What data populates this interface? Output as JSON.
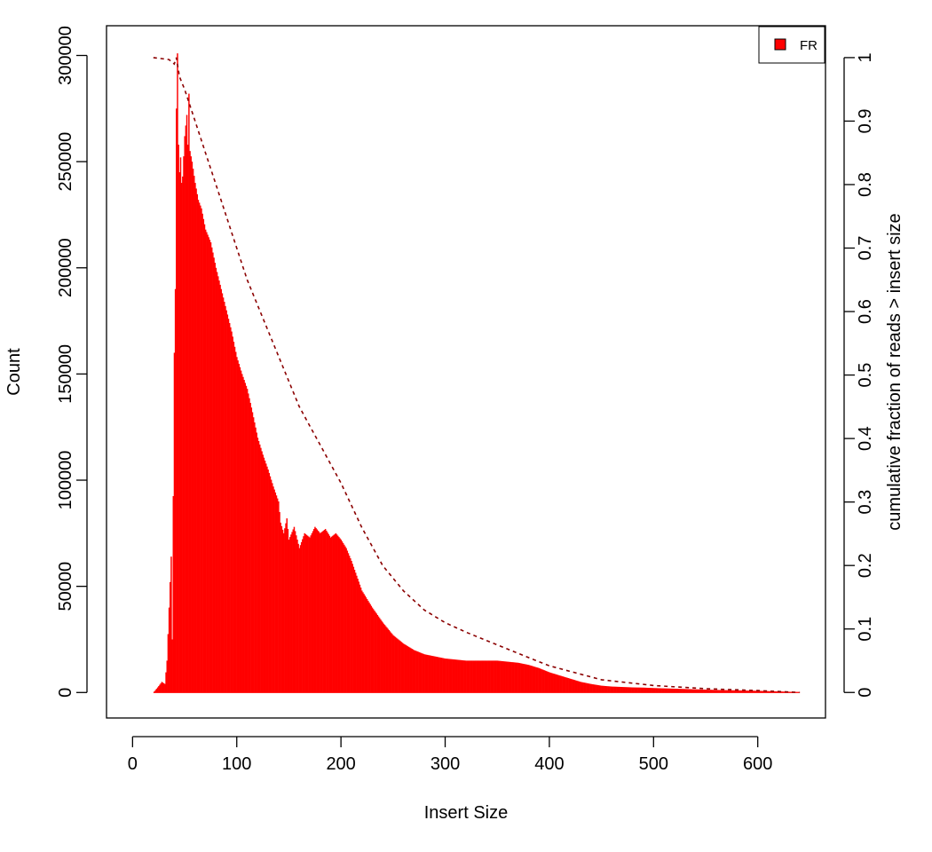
{
  "chart_data": {
    "type": "bar",
    "xlabel": "Insert Size",
    "ylabel": "Count",
    "y2label": "cumulative fraction of reads > insert size",
    "xlim": [
      -25,
      665
    ],
    "ylim": [
      -12000,
      314000
    ],
    "y2lim": [
      -0.0402,
      1.0502
    ],
    "x_ticks": [
      0,
      100,
      200,
      300,
      400,
      500,
      600
    ],
    "y_ticks": [
      0,
      50000,
      100000,
      150000,
      200000,
      250000,
      300000
    ],
    "y2_ticks": [
      "0",
      "0.1",
      "0.2",
      "0.3",
      "0.4",
      "0.5",
      "0.6",
      "0.7",
      "0.8",
      "0.9",
      "1"
    ],
    "grid": false,
    "legend_position": "top-right",
    "colors": {
      "bars": "#ff0000",
      "cumulative": "#8b0000"
    },
    "series": [
      {
        "name": "FR",
        "kind": "histogram",
        "points": [
          [
            20,
            0
          ],
          [
            25,
            3000
          ],
          [
            28,
            5000
          ],
          [
            31,
            4000
          ],
          [
            33,
            15000
          ],
          [
            35,
            40000
          ],
          [
            37,
            64000
          ],
          [
            38,
            25000
          ],
          [
            40,
            160000
          ],
          [
            41,
            190000
          ],
          [
            42,
            275000
          ],
          [
            43,
            301000
          ],
          [
            44,
            258000
          ],
          [
            45,
            245000
          ],
          [
            46,
            252000
          ],
          [
            47,
            240000
          ],
          [
            48,
            243000
          ],
          [
            50,
            262000
          ],
          [
            52,
            272000
          ],
          [
            53,
            258000
          ],
          [
            54,
            282000
          ],
          [
            55,
            255000
          ],
          [
            57,
            250000
          ],
          [
            60,
            240000
          ],
          [
            63,
            232000
          ],
          [
            66,
            228000
          ],
          [
            70,
            218000
          ],
          [
            75,
            212000
          ],
          [
            80,
            200000
          ],
          [
            85,
            190000
          ],
          [
            90,
            180000
          ],
          [
            95,
            170000
          ],
          [
            100,
            158000
          ],
          [
            105,
            150000
          ],
          [
            110,
            143000
          ],
          [
            115,
            132000
          ],
          [
            120,
            120000
          ],
          [
            125,
            112000
          ],
          [
            130,
            105000
          ],
          [
            135,
            97000
          ],
          [
            140,
            90000
          ],
          [
            142,
            80000
          ],
          [
            145,
            75000
          ],
          [
            148,
            82000
          ],
          [
            150,
            72000
          ],
          [
            155,
            78000
          ],
          [
            160,
            68000
          ],
          [
            165,
            75000
          ],
          [
            170,
            73000
          ],
          [
            175,
            78000
          ],
          [
            180,
            75000
          ],
          [
            185,
            77000
          ],
          [
            190,
            73000
          ],
          [
            195,
            75000
          ],
          [
            200,
            72000
          ],
          [
            205,
            68000
          ],
          [
            210,
            62000
          ],
          [
            215,
            55000
          ],
          [
            220,
            48000
          ],
          [
            230,
            40000
          ],
          [
            240,
            33000
          ],
          [
            250,
            27000
          ],
          [
            260,
            23000
          ],
          [
            270,
            20000
          ],
          [
            280,
            18000
          ],
          [
            290,
            17000
          ],
          [
            300,
            16000
          ],
          [
            310,
            15500
          ],
          [
            320,
            15000
          ],
          [
            330,
            15000
          ],
          [
            340,
            15000
          ],
          [
            350,
            15000
          ],
          [
            360,
            14500
          ],
          [
            370,
            14000
          ],
          [
            380,
            13000
          ],
          [
            390,
            11500
          ],
          [
            400,
            9500
          ],
          [
            410,
            8000
          ],
          [
            420,
            6500
          ],
          [
            430,
            5000
          ],
          [
            440,
            4000
          ],
          [
            450,
            3200
          ],
          [
            460,
            2800
          ],
          [
            470,
            2600
          ],
          [
            480,
            2400
          ],
          [
            490,
            2300
          ],
          [
            500,
            2100
          ],
          [
            520,
            1800
          ],
          [
            540,
            1500
          ],
          [
            560,
            1200
          ],
          [
            580,
            1000
          ],
          [
            600,
            800
          ],
          [
            620,
            500
          ],
          [
            640,
            200
          ]
        ]
      },
      {
        "name": "cumulative",
        "kind": "line",
        "points": [
          [
            20,
            1.0
          ],
          [
            35,
            0.997
          ],
          [
            40,
            0.99
          ],
          [
            42,
            1.0
          ],
          [
            45,
            0.97
          ],
          [
            50,
            0.95
          ],
          [
            60,
            0.9
          ],
          [
            70,
            0.85
          ],
          [
            80,
            0.8
          ],
          [
            90,
            0.75
          ],
          [
            100,
            0.7
          ],
          [
            110,
            0.65
          ],
          [
            120,
            0.61
          ],
          [
            140,
            0.53
          ],
          [
            160,
            0.45
          ],
          [
            180,
            0.39
          ],
          [
            200,
            0.33
          ],
          [
            220,
            0.26
          ],
          [
            240,
            0.2
          ],
          [
            260,
            0.16
          ],
          [
            280,
            0.13
          ],
          [
            300,
            0.11
          ],
          [
            320,
            0.095
          ],
          [
            350,
            0.075
          ],
          [
            380,
            0.055
          ],
          [
            400,
            0.042
          ],
          [
            450,
            0.02
          ],
          [
            500,
            0.011
          ],
          [
            550,
            0.006
          ],
          [
            600,
            0.003
          ],
          [
            640,
            0.0
          ]
        ]
      }
    ]
  }
}
